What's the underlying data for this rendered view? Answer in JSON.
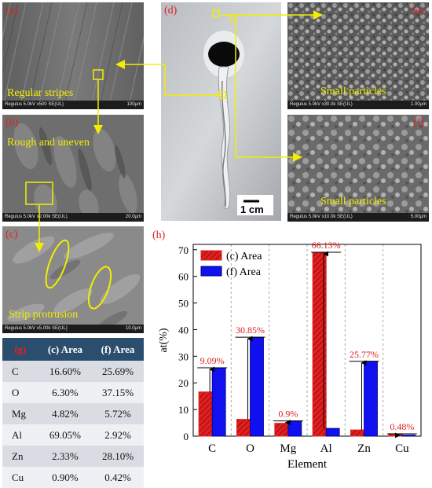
{
  "panels": {
    "a": {
      "tag": "(a)",
      "caption": "Regular stripes",
      "bar_left": "Regulus 5.0kV x500 SE(UL)",
      "bar_right": "100µm"
    },
    "b": {
      "tag": "(b)",
      "caption": "Rough and uneven",
      "bar_left": "Regulus 5.0kV x2.00k SE(UL)",
      "bar_right": "20.0µm"
    },
    "c": {
      "tag": "(c)",
      "caption": "Strip protrusion",
      "bar_left": "Regulus 5.0kV x5.00k SE(UL)",
      "bar_right": "10.0µm"
    },
    "d": {
      "tag": "(d)",
      "scale_label": "1 cm"
    },
    "e": {
      "tag": "(e)",
      "caption": "Small particles",
      "bar_left": "Regulus 5.0kV x30.0k SE(UL)",
      "bar_right": "1.00µm"
    },
    "f": {
      "tag": "(f)",
      "caption": "Small particles",
      "bar_left": "Regulus 5.0kV x10.0k SE(UL)",
      "bar_right": "5.00µm"
    }
  },
  "table": {
    "tag": "(g)",
    "headers": [
      "(c) Area",
      "(f) Area"
    ],
    "rows": [
      {
        "element": "C",
        "c": "16.60%",
        "f": "25.69%"
      },
      {
        "element": "O",
        "c": "6.30%",
        "f": "37.15%"
      },
      {
        "element": "Mg",
        "c": "4.82%",
        "f": "5.72%"
      },
      {
        "element": "Al",
        "c": "69.05%",
        "f": "2.92%"
      },
      {
        "element": "Zn",
        "c": "2.33%",
        "f": "28.10%"
      },
      {
        "element": "Cu",
        "c": "0.90%",
        "f": "0.42%"
      }
    ]
  },
  "chart_data": {
    "type": "bar",
    "panel_tag": "(h)",
    "categories": [
      "C",
      "O",
      "Mg",
      "Al",
      "Zn",
      "Cu"
    ],
    "series": [
      {
        "name": "(c) Area",
        "values": [
          16.6,
          6.3,
          4.82,
          69.05,
          2.33,
          0.9
        ],
        "color": "#e02020"
      },
      {
        "name": "(f) Area",
        "values": [
          25.69,
          37.15,
          5.72,
          2.92,
          28.1,
          0.42
        ],
        "color": "#1010f0"
      }
    ],
    "annotations": [
      "9.09%",
      "30.85%",
      "0.9%",
      "66.13%",
      "25.77%",
      "0.48%"
    ],
    "annotation_color": "#e02020",
    "xlabel": "Element",
    "ylabel": "at(%)",
    "ylim": [
      0,
      72
    ],
    "yticks": [
      0,
      10,
      20,
      30,
      40,
      50,
      60,
      70
    ],
    "grid": "vertical dashed separators",
    "legend": "top-left"
  }
}
